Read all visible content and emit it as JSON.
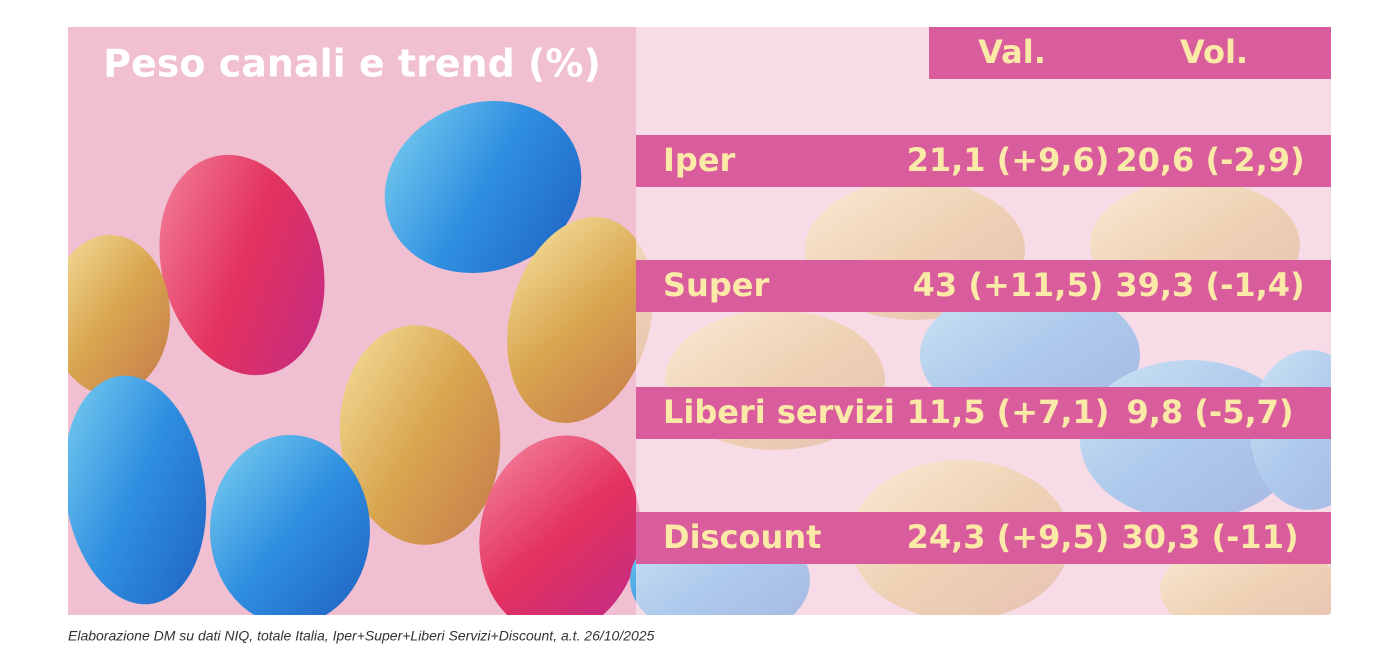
{
  "title": "Peso canali e trend (%)",
  "table": {
    "header": [
      "Val.",
      "Vol."
    ],
    "rows": [
      [
        "Iper",
        "21,1 (+9,6)",
        "20,6 (-2,9)"
      ],
      [
        "Super",
        "43 (+11,5)",
        "39,3 (-1,4)"
      ],
      [
        "Liberi servizi",
        "11,5 (+7,1)",
        "9,8 (-5,7)"
      ],
      [
        "Discount",
        "24,3 (+9,5)",
        "30,3 (-11)"
      ]
    ]
  },
  "footnote": "Elaborazione DM su dati NIQ, totale Italia, Iper+Super+Liberi Servizi+Discount, a.t. 26/10/2025"
}
